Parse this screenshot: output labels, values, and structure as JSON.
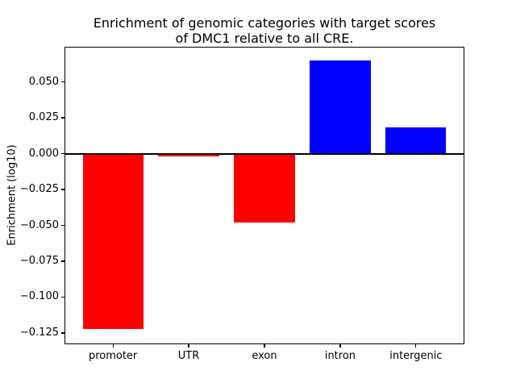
{
  "chart_data": {
    "type": "bar",
    "title": "Enrichment of genomic categories with target scores of DMC1 relative to all CRE.",
    "title_lines": [
      "Enrichment of genomic categories with target scores",
      "of DMC1 relative to all CRE."
    ],
    "xlabel": "",
    "ylabel": "Enrichment (log10)",
    "categories": [
      "promoter",
      "UTR",
      "exon",
      "intron",
      "intergenic"
    ],
    "values": [
      -0.122,
      -0.002,
      -0.048,
      0.065,
      0.018
    ],
    "positive_color": "#0000ff",
    "negative_color": "#ff0000",
    "zero_line": {
      "y": 0,
      "color": "#000000"
    },
    "ylim": [
      -0.133,
      0.0747
    ],
    "yticks": [
      0.05,
      0.025,
      0.0,
      -0.025,
      -0.05,
      -0.075,
      -0.1,
      -0.125
    ],
    "ytick_labels": [
      "0.050",
      "0.025",
      "0.000",
      "−0.025",
      "−0.050",
      "−0.075",
      "−0.100",
      "−0.125"
    ],
    "grid": false,
    "legend": null,
    "background_color": "#ffffff"
  }
}
